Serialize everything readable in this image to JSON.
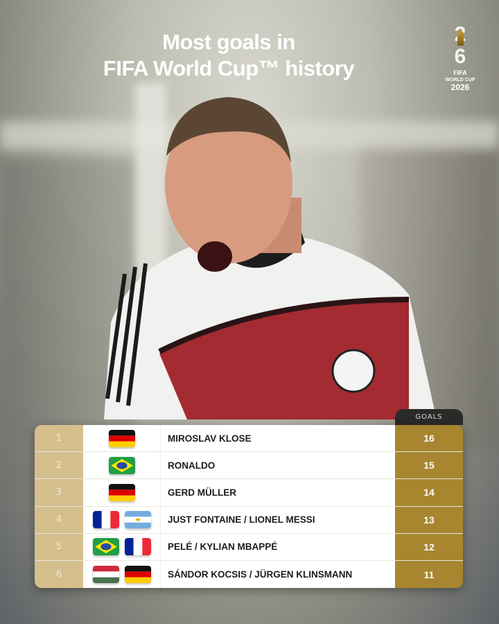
{
  "title_line1": "Most goals in",
  "title_line2": "FIFA World Cup™ history",
  "logo": {
    "text": "FIFA WORLD CUP 2026"
  },
  "table": {
    "goals_header": "GOALS",
    "rows": [
      {
        "rank": "1",
        "flags": [
          "germany"
        ],
        "name": "MIROSLAV KLOSE",
        "goals": "16"
      },
      {
        "rank": "2",
        "flags": [
          "brazil"
        ],
        "name": "RONALDO",
        "goals": "15"
      },
      {
        "rank": "3",
        "flags": [
          "germany"
        ],
        "name": "GERD MÜLLER",
        "goals": "14"
      },
      {
        "rank": "4",
        "flags": [
          "france",
          "argentina"
        ],
        "name": "JUST FONTAINE / LIONEL MESSI",
        "goals": "13"
      },
      {
        "rank": "5",
        "flags": [
          "brazil",
          "france"
        ],
        "name": "PELÉ / KYLIAN MBAPPÉ",
        "goals": "12"
      },
      {
        "rank": "6",
        "flags": [
          "hungary",
          "germany"
        ],
        "name": "SÁNDOR KOCSIS / JÜRGEN KLINSMANN",
        "goals": "11"
      }
    ]
  },
  "colors": {
    "rank_bg": "#d5bf8d",
    "goals_bg": "#a8862f",
    "tab_bg": "#2b2a28"
  }
}
